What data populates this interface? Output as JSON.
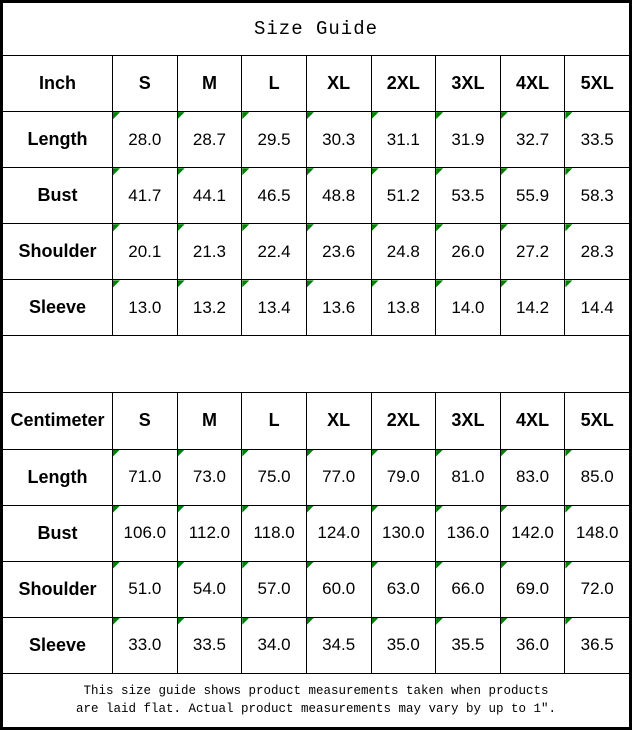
{
  "title": "Size Guide",
  "footer": {
    "line1": "This size guide shows product measurements taken when products",
    "line2": "are laid flat. Actual product measurements may vary by up to 1″."
  },
  "colors": {
    "marker_green": "#008000",
    "border": "#000000",
    "background": "#ffffff",
    "text": "#000000"
  },
  "marker_icon": "excel-green-corner-triangle",
  "chart_data": [
    {
      "type": "table",
      "title": "Size Guide",
      "unit": "Inch",
      "columns": [
        "Inch",
        "S",
        "M",
        "L",
        "XL",
        "2XL",
        "3XL",
        "4XL",
        "5XL"
      ],
      "rows": [
        {
          "label": "Length",
          "values": [
            "28.0",
            "28.7",
            "29.5",
            "30.3",
            "31.1",
            "31.9",
            "32.7",
            "33.5"
          ]
        },
        {
          "label": "Bust",
          "values": [
            "41.7",
            "44.1",
            "46.5",
            "48.8",
            "51.2",
            "53.5",
            "55.9",
            "58.3"
          ]
        },
        {
          "label": "Shoulder",
          "values": [
            "20.1",
            "21.3",
            "22.4",
            "23.6",
            "24.8",
            "26.0",
            "27.2",
            "28.3"
          ]
        },
        {
          "label": "Sleeve",
          "values": [
            "13.0",
            "13.2",
            "13.4",
            "13.6",
            "13.8",
            "14.0",
            "14.2",
            "14.4"
          ]
        }
      ]
    },
    {
      "type": "table",
      "title": "Size Guide",
      "unit": "Centimeter",
      "columns": [
        "Centimeter",
        "S",
        "M",
        "L",
        "XL",
        "2XL",
        "3XL",
        "4XL",
        "5XL"
      ],
      "rows": [
        {
          "label": "Length",
          "values": [
            "71.0",
            "73.0",
            "75.0",
            "77.0",
            "79.0",
            "81.0",
            "83.0",
            "85.0"
          ]
        },
        {
          "label": "Bust",
          "values": [
            "106.0",
            "112.0",
            "118.0",
            "124.0",
            "130.0",
            "136.0",
            "142.0",
            "148.0"
          ]
        },
        {
          "label": "Shoulder",
          "values": [
            "51.0",
            "54.0",
            "57.0",
            "60.0",
            "63.0",
            "66.0",
            "69.0",
            "72.0"
          ]
        },
        {
          "label": "Sleeve",
          "values": [
            "33.0",
            "33.5",
            "34.0",
            "34.5",
            "35.0",
            "35.5",
            "36.0",
            "36.5"
          ]
        }
      ]
    }
  ]
}
